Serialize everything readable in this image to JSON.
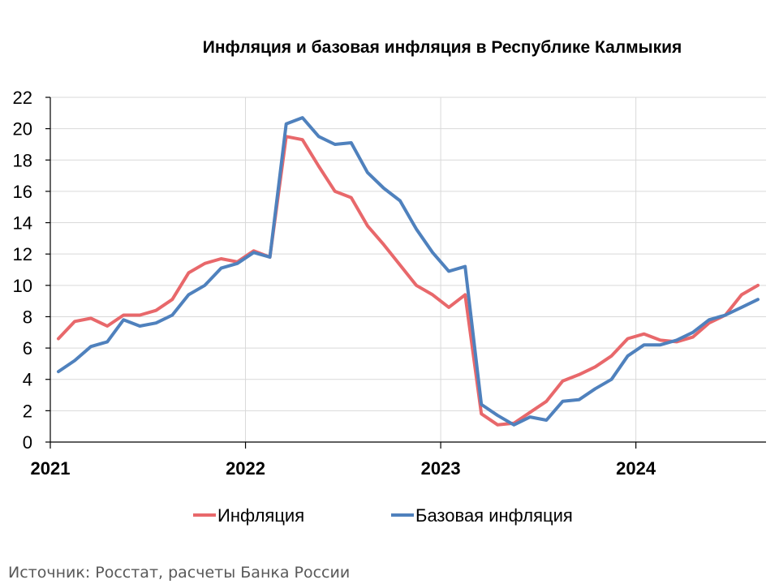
{
  "chart_data": {
    "type": "line",
    "title": "Инфляция и базовая инфляция в Республике Калмыкия",
    "source": "Источник: Росстат, расчеты Банка России",
    "ylim": [
      0,
      22
    ],
    "y_ticks": [
      0,
      2,
      4,
      6,
      8,
      10,
      12,
      14,
      16,
      18,
      20,
      22
    ],
    "x_tick_labels": [
      "2021",
      "2022",
      "2023",
      "2024"
    ],
    "x_tick_values": [
      "2021-01",
      "2022-01",
      "2023-01",
      "2024-01"
    ],
    "grid": true,
    "legend_position": "bottom",
    "x": [
      "2021-01",
      "2021-02",
      "2021-03",
      "2021-04",
      "2021-05",
      "2021-06",
      "2021-07",
      "2021-08",
      "2021-09",
      "2021-10",
      "2021-11",
      "2021-12",
      "2022-01",
      "2022-02",
      "2022-03",
      "2022-04",
      "2022-05",
      "2022-06",
      "2022-07",
      "2022-08",
      "2022-09",
      "2022-10",
      "2022-11",
      "2022-12",
      "2023-01",
      "2023-02",
      "2023-03",
      "2023-04",
      "2023-05",
      "2023-06",
      "2023-07",
      "2023-08",
      "2023-09",
      "2023-10",
      "2023-11",
      "2023-12",
      "2024-01",
      "2024-02",
      "2024-03",
      "2024-04",
      "2024-05",
      "2024-06",
      "2024-07",
      "2024-08"
    ],
    "series": [
      {
        "name": "Инфляция",
        "color": "#e8686b",
        "values": [
          6.6,
          7.7,
          7.9,
          7.4,
          8.1,
          8.1,
          8.4,
          9.1,
          10.8,
          11.4,
          11.7,
          11.5,
          12.2,
          11.8,
          19.5,
          19.3,
          17.6,
          16.0,
          15.6,
          13.8,
          12.6,
          11.3,
          10.0,
          9.4,
          8.6,
          9.4,
          1.8,
          1.1,
          1.2,
          1.9,
          2.6,
          3.9,
          4.3,
          4.8,
          5.5,
          6.6,
          6.9,
          6.5,
          6.4,
          6.7,
          7.6,
          8.1,
          9.4,
          10.0
        ]
      },
      {
        "name": "Базовая инфляция",
        "color": "#4f81bd",
        "values": [
          4.5,
          5.2,
          6.1,
          6.4,
          7.8,
          7.4,
          7.6,
          8.1,
          9.4,
          10.0,
          11.1,
          11.4,
          12.1,
          11.8,
          20.3,
          20.7,
          19.5,
          19.0,
          19.1,
          17.2,
          16.2,
          15.4,
          13.6,
          12.1,
          10.9,
          11.2,
          2.4,
          1.7,
          1.1,
          1.6,
          1.4,
          2.6,
          2.7,
          3.4,
          4.0,
          5.5,
          6.2,
          6.2,
          6.5,
          7.0,
          7.8,
          8.1,
          8.6,
          9.1
        ]
      }
    ]
  }
}
